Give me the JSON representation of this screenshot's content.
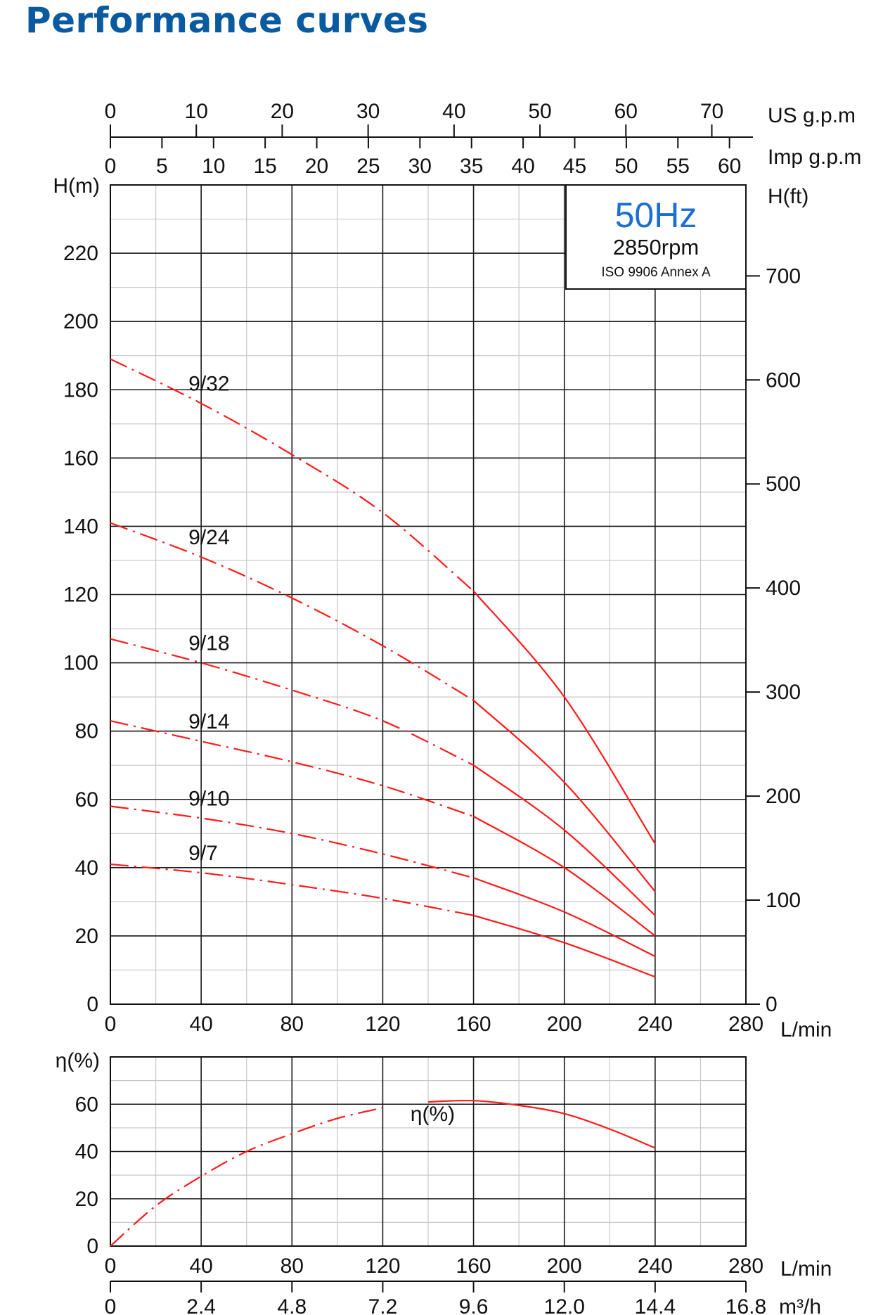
{
  "page": {
    "title": "Performance curves",
    "title_color": "#0a5aa0"
  },
  "chart_data": [
    {
      "type": "line",
      "name": "head",
      "xlabel": "L/min",
      "ylabel": "H(m)",
      "y2label": "H(ft)",
      "xlim": [
        0,
        280
      ],
      "ylim": [
        0,
        240
      ],
      "x_ticks": [
        0,
        40,
        80,
        120,
        160,
        200,
        240,
        280
      ],
      "y_ticks": [
        0,
        20,
        40,
        60,
        80,
        100,
        120,
        140,
        160,
        180,
        200,
        220
      ],
      "y2_ticks": [
        0,
        100,
        200,
        300,
        400,
        500,
        600,
        700
      ],
      "top_axis_us": {
        "label": "US g.p.m",
        "ticks": [
          0,
          10,
          20,
          30,
          40,
          50,
          60,
          70
        ]
      },
      "top_axis_imp": {
        "label": "Imp g.p.m",
        "ticks": [
          0,
          5,
          10,
          15,
          20,
          25,
          30,
          35,
          40,
          45,
          50,
          55,
          60
        ]
      },
      "info_box": {
        "freq": "50Hz",
        "rpm": "2850rpm",
        "standard": "ISO 9906 Annex A"
      },
      "curve_color": "#ff1a1a",
      "freq_color": "#1a6fd1",
      "dashed_until_x": 160,
      "grid": true,
      "series": [
        {
          "name": "9/32",
          "x": [
            0,
            40,
            80,
            120,
            160,
            200,
            240
          ],
          "y": [
            189,
            176,
            161,
            144,
            121,
            90,
            47
          ]
        },
        {
          "name": "9/24",
          "x": [
            0,
            40,
            80,
            120,
            160,
            200,
            240
          ],
          "y": [
            141,
            131,
            119,
            105,
            89,
            65,
            33
          ]
        },
        {
          "name": "9/18",
          "x": [
            0,
            40,
            80,
            120,
            160,
            200,
            240
          ],
          "y": [
            107,
            100,
            92,
            83,
            70,
            51,
            26
          ]
        },
        {
          "name": "9/14",
          "x": [
            0,
            40,
            80,
            120,
            160,
            200,
            240
          ],
          "y": [
            83,
            77,
            71,
            64,
            55,
            40,
            20
          ]
        },
        {
          "name": "9/10",
          "x": [
            0,
            40,
            80,
            120,
            160,
            200,
            240
          ],
          "y": [
            58,
            54.5,
            50,
            44,
            37,
            27,
            14
          ]
        },
        {
          "name": "9/7",
          "x": [
            0,
            40,
            80,
            120,
            160,
            200,
            240
          ],
          "y": [
            41,
            38.5,
            35,
            31,
            26,
            18,
            8
          ]
        }
      ]
    },
    {
      "type": "line",
      "name": "efficiency",
      "xlabel": "L/min",
      "ylabel": "η(%)",
      "xlim": [
        0,
        280
      ],
      "ylim": [
        0,
        80
      ],
      "x_ticks": [
        0,
        40,
        80,
        120,
        160,
        200,
        240,
        280
      ],
      "y_ticks": [
        0,
        20,
        40,
        60
      ],
      "bottom_axis_m3h": {
        "label": "m³/h",
        "ticks": [
          "0",
          "2.4",
          "4.8",
          "7.2",
          "9.6",
          "12.0",
          "14.4",
          "16.8"
        ]
      },
      "series": [
        {
          "name": "η(%)",
          "x": [
            0,
            20,
            40,
            60,
            80,
            100,
            120,
            140,
            160,
            180,
            200,
            220,
            240
          ],
          "y": [
            0,
            17,
            29.5,
            40,
            47.5,
            54,
            58.5,
            61,
            61.5,
            59.5,
            56,
            49.5,
            41.5
          ]
        }
      ]
    }
  ]
}
